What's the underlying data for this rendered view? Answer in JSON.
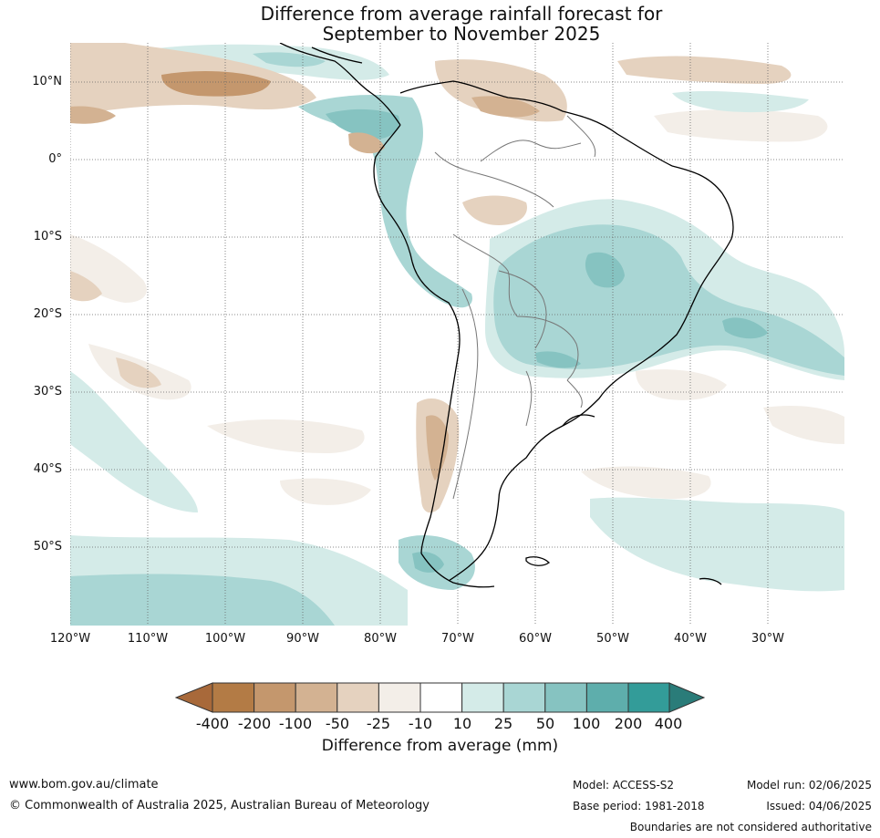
{
  "title_line1": "Difference from average rainfall forecast for",
  "title_line2": "September to November 2025",
  "lat_labels": [
    {
      "text": "10°N",
      "lat": 10
    },
    {
      "text": "0°",
      "lat": 0
    },
    {
      "text": "10°S",
      "lat": -10
    },
    {
      "text": "20°S",
      "lat": -20
    },
    {
      "text": "30°S",
      "lat": -30
    },
    {
      "text": "40°S",
      "lat": -40
    },
    {
      "text": "50°S",
      "lat": -50
    }
  ],
  "lon_labels": [
    {
      "text": "120°W",
      "lon": -120
    },
    {
      "text": "110°W",
      "lon": -110
    },
    {
      "text": "100°W",
      "lon": -100
    },
    {
      "text": "90°W",
      "lon": -90
    },
    {
      "text": "80°W",
      "lon": -80
    },
    {
      "text": "70°W",
      "lon": -70
    },
    {
      "text": "60°W",
      "lon": -60
    },
    {
      "text": "50°W",
      "lon": -50
    },
    {
      "text": "40°W",
      "lon": -40
    },
    {
      "text": "30°W",
      "lon": -30
    }
  ],
  "colorbar": {
    "ticks": [
      "-400",
      "-200",
      "-100",
      "-50",
      "-25",
      "-10",
      "10",
      "25",
      "50",
      "100",
      "200",
      "400"
    ],
    "colors": [
      "#a8693a",
      "#b37b45",
      "#c4976d",
      "#d3b292",
      "#e5d2bf",
      "#f3eee8",
      "#ffffff",
      "#d4ebe8",
      "#a9d6d4",
      "#86c3c1",
      "#5eaeac",
      "#339c99",
      "#2a7c79"
    ],
    "label": "Difference from average (mm)"
  },
  "footer": {
    "website": "www.bom.gov.au/climate",
    "copyright": "© Commonwealth of Australia 2025, Australian Bureau of Meteorology",
    "model": "Model: ACCESS-S2",
    "base_period": "Base period: 1981-2018",
    "model_run": "Model run: 02/06/2025",
    "issued": "Issued: 04/06/2025",
    "boundaries": "Boundaries are not considered authoritative"
  }
}
